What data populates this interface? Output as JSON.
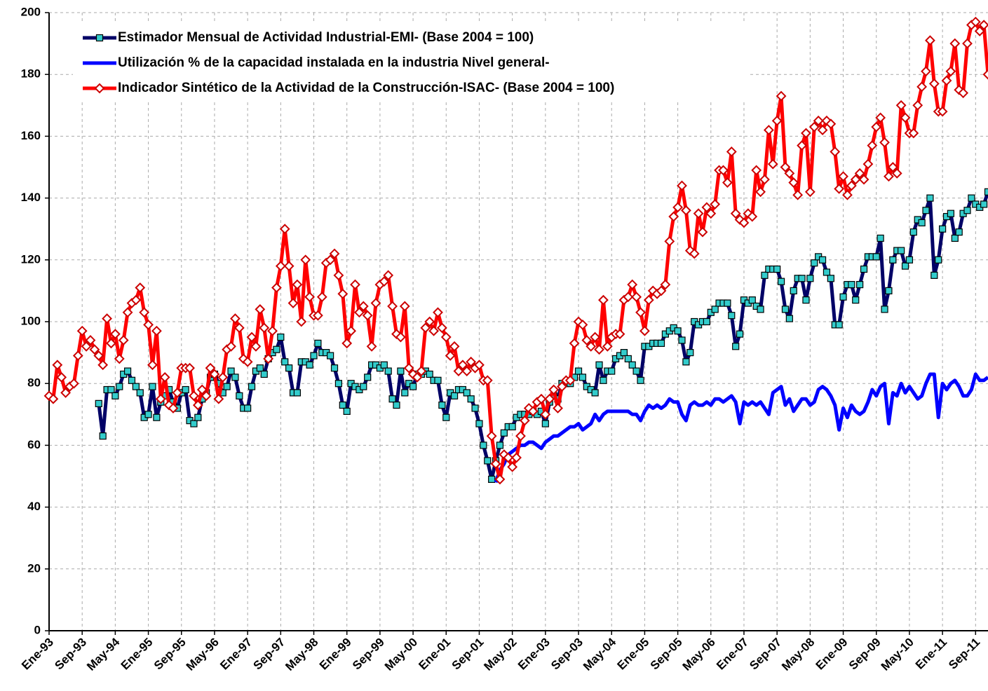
{
  "chart_data": {
    "type": "line",
    "categories": [
      "Ene-93",
      null,
      null,
      null,
      null,
      null,
      null,
      null,
      "Sep-93",
      null,
      null,
      null,
      null,
      null,
      null,
      null,
      "May-94",
      null,
      null,
      null,
      null,
      null,
      null,
      null,
      "Ene-95",
      null,
      null,
      null,
      null,
      null,
      null,
      null,
      "Sep-95",
      null,
      null,
      null,
      null,
      null,
      null,
      null,
      "May-96",
      null,
      null,
      null,
      null,
      null,
      null,
      null,
      "Ene-97",
      null,
      null,
      null,
      null,
      null,
      null,
      null,
      "Sep-97",
      null,
      null,
      null,
      null,
      null,
      null,
      null,
      "May-98",
      null,
      null,
      null,
      null,
      null,
      null,
      null,
      "Ene-99",
      null,
      null,
      null,
      null,
      null,
      null,
      null,
      "Sep-99",
      null,
      null,
      null,
      null,
      null,
      null,
      null,
      "May-00",
      null,
      null,
      null,
      null,
      null,
      null,
      null,
      "Ene-01",
      null,
      null,
      null,
      null,
      null,
      null,
      null,
      "Sep-01",
      null,
      null,
      null,
      null,
      null,
      null,
      null,
      "May-02",
      null,
      null,
      null,
      null,
      null,
      null,
      null,
      "Ene-03",
      null,
      null,
      null,
      null,
      null,
      null,
      null,
      "Sep-03",
      null,
      null,
      null,
      null,
      null,
      null,
      null,
      "May-04",
      null,
      null,
      null,
      null,
      null,
      null,
      null,
      "Ene-05",
      null,
      null,
      null,
      null,
      null,
      null,
      null,
      "Sep-05",
      null,
      null,
      null,
      null,
      null,
      null,
      null,
      "May-06",
      null,
      null,
      null,
      null,
      null,
      null,
      null,
      "Ene-07",
      null,
      null,
      null,
      null,
      null,
      null,
      null,
      "Sep-07",
      null,
      null,
      null,
      null,
      null,
      null,
      null,
      "May-08",
      null,
      null,
      null,
      null,
      null,
      null,
      null,
      "Ene-09",
      null,
      null,
      null,
      null,
      null,
      null,
      null,
      "Sep-09",
      null,
      null,
      null,
      null,
      null,
      null,
      null,
      "May-10",
      null,
      null,
      null,
      null,
      null,
      null,
      null,
      "Ene-11",
      null,
      null,
      null,
      null,
      null,
      null,
      null,
      "Sep-11",
      null,
      null,
      null
    ],
    "series": [
      {
        "name": "Estimador Mensual de Actividad Industrial-EMI- (Base 2004 = 100)",
        "color": "#000066",
        "marker": "square",
        "marker_color": "#33cccc",
        "values": [
          null,
          null,
          null,
          null,
          null,
          null,
          null,
          null,
          null,
          null,
          null,
          null,
          73.5,
          63,
          78,
          78,
          76,
          79,
          83,
          84,
          81,
          79,
          77,
          69,
          70,
          79,
          69,
          74,
          76,
          78,
          74,
          72,
          77,
          78,
          68,
          67,
          69,
          75,
          77,
          82,
          83,
          80,
          77,
          79,
          84,
          82,
          76,
          72,
          72,
          79,
          84,
          85,
          83,
          88,
          90,
          91,
          95,
          87,
          85,
          77,
          77,
          87,
          87,
          86,
          89,
          93,
          90,
          90,
          89,
          85,
          80,
          73,
          71,
          80,
          79,
          78,
          79,
          82,
          86,
          86,
          85,
          86,
          84,
          75,
          73,
          84,
          77,
          80,
          79,
          83,
          83,
          84,
          83,
          81,
          81,
          73,
          69,
          77,
          76,
          78,
          78,
          77,
          75,
          72,
          67,
          60,
          55,
          49,
          55,
          60,
          64,
          66,
          66,
          69,
          70,
          70,
          70,
          71,
          70,
          71,
          67,
          74,
          76,
          75,
          80,
          80,
          80,
          82,
          84,
          82,
          79,
          78,
          77,
          86,
          81,
          84,
          84,
          88,
          89,
          90,
          88,
          86,
          84,
          81,
          92,
          92,
          93,
          93,
          93,
          96,
          97,
          98,
          97,
          94,
          87,
          90,
          100,
          99,
          100,
          100,
          103,
          104,
          106,
          106,
          106,
          102,
          92,
          96,
          107,
          106,
          107,
          105,
          104,
          115,
          117,
          117,
          117,
          113,
          104,
          101,
          110,
          114,
          114,
          107,
          114,
          119,
          121,
          120,
          116,
          114,
          99,
          99,
          108,
          112,
          112,
          107,
          112,
          117,
          121,
          121,
          121,
          127,
          104,
          110,
          120,
          123,
          123,
          118,
          120,
          129,
          133,
          132,
          136,
          140,
          115,
          120,
          130,
          134,
          135,
          127,
          129,
          135,
          136,
          140,
          138,
          137,
          138,
          142
        ]
      },
      {
        "name": "Utilización % de la capacidad instalada en la industria Nivel general-",
        "color": "#0000ff",
        "marker": null,
        "values": [
          null,
          null,
          null,
          null,
          null,
          null,
          null,
          null,
          null,
          null,
          null,
          null,
          null,
          null,
          null,
          null,
          null,
          null,
          null,
          null,
          null,
          null,
          null,
          null,
          null,
          null,
          null,
          null,
          null,
          null,
          null,
          null,
          null,
          null,
          null,
          null,
          null,
          null,
          null,
          null,
          null,
          null,
          null,
          null,
          null,
          null,
          null,
          null,
          null,
          null,
          null,
          null,
          null,
          null,
          null,
          null,
          null,
          null,
          null,
          null,
          null,
          null,
          null,
          null,
          null,
          null,
          null,
          null,
          null,
          null,
          null,
          null,
          null,
          null,
          null,
          null,
          null,
          null,
          null,
          null,
          null,
          null,
          null,
          null,
          null,
          null,
          null,
          null,
          null,
          null,
          null,
          null,
          null,
          null,
          null,
          null,
          null,
          null,
          null,
          null,
          null,
          null,
          null,
          null,
          null,
          null,
          null,
          null,
          48,
          52,
          54,
          57,
          58,
          59,
          60,
          60,
          61,
          61,
          60,
          59,
          61,
          62,
          63,
          63,
          64,
          65,
          66,
          66,
          67,
          65,
          66,
          67,
          70,
          68,
          70,
          71,
          71,
          71,
          71,
          71,
          71,
          70,
          70,
          68,
          71,
          73,
          72,
          73,
          72,
          73,
          75,
          74,
          74,
          70,
          68,
          73,
          74,
          73,
          73,
          74,
          73,
          75,
          75,
          74,
          75,
          76,
          74,
          67,
          74,
          73,
          74,
          73,
          74,
          72,
          70,
          77,
          78,
          79,
          73,
          75,
          71,
          73,
          75,
          75,
          73,
          74,
          78,
          79,
          78,
          76,
          73,
          65,
          72,
          69,
          73,
          71,
          70,
          71,
          74,
          78,
          76,
          79,
          80,
          67,
          77,
          76,
          80,
          77,
          79,
          77,
          75,
          76,
          80,
          83,
          83,
          69,
          80,
          78,
          80,
          81,
          79,
          76,
          76,
          78,
          83,
          81,
          81,
          82
        ]
      },
      {
        "name": "Indicador Sintético de la Actividad de la Construcción-ISAC- (Base 2004 = 100)",
        "color": "#ff0000",
        "marker": "diamond",
        "marker_color": "#ffffff",
        "values": [
          76,
          75,
          86,
          82,
          77,
          79,
          80,
          89,
          97,
          92,
          94,
          91,
          89,
          86,
          101,
          93,
          96,
          88,
          94,
          103,
          106,
          107,
          111,
          103,
          99,
          86,
          97,
          75,
          82,
          73,
          72,
          77,
          85,
          85,
          85,
          76,
          73,
          78,
          76,
          85,
          83,
          75,
          82,
          91,
          92,
          101,
          98,
          88,
          87,
          95,
          92,
          104,
          98,
          88,
          97,
          111,
          118,
          130,
          118,
          106,
          112,
          100,
          120,
          108,
          102,
          102,
          108,
          119,
          120,
          122,
          115,
          109,
          93,
          97,
          112,
          103,
          105,
          102,
          92,
          106,
          112,
          113,
          115,
          105,
          96,
          95,
          105,
          85,
          83,
          82,
          84,
          98,
          100,
          97,
          103,
          98,
          95,
          89,
          92,
          84,
          86,
          84,
          87,
          85,
          86,
          81,
          81,
          63,
          54,
          49,
          57,
          56,
          53,
          56,
          63,
          68,
          72,
          71,
          74,
          75,
          70,
          75,
          78,
          72,
          79,
          81,
          81,
          93,
          100,
          99,
          94,
          92,
          95,
          91,
          107,
          92,
          95,
          96,
          96,
          107,
          108,
          112,
          108,
          103,
          97,
          107,
          110,
          109,
          110,
          112,
          126,
          134,
          137,
          144,
          136,
          123,
          122,
          135,
          129,
          137,
          135,
          138,
          149,
          149,
          145,
          155,
          135,
          133,
          132,
          135,
          134,
          149,
          142,
          146,
          162,
          151,
          165,
          173,
          150,
          148,
          145,
          141,
          157,
          161,
          142,
          163,
          165,
          162,
          165,
          164,
          155,
          143,
          147,
          141,
          144,
          146,
          148,
          146,
          151,
          157,
          163,
          166,
          158,
          147,
          150,
          148,
          170,
          166,
          161,
          161,
          170,
          176,
          181,
          191,
          177,
          168,
          168,
          178,
          181,
          190,
          175,
          174,
          190,
          196,
          197,
          194,
          196,
          180
        ]
      }
    ],
    "ylim": [
      0,
      200
    ],
    "yticks": [
      0,
      20,
      40,
      60,
      80,
      100,
      120,
      140,
      160,
      180,
      200
    ],
    "grid": true,
    "legend": "upper left"
  }
}
